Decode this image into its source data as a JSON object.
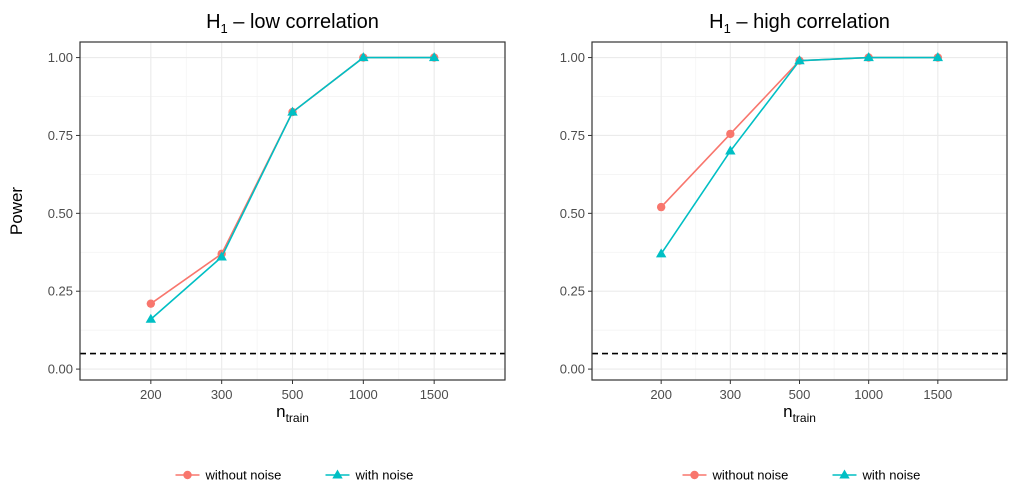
{
  "chart_data": [
    {
      "type": "line",
      "title_main": "H",
      "title_sub": "1",
      "title_rest": " – low correlation",
      "xlabel_main": "n",
      "xlabel_sub": "train",
      "ylabel": "Power",
      "categories": [
        "200",
        "300",
        "500",
        "1000",
        "1500"
      ],
      "yticks": [
        "0.00",
        "0.25",
        "0.50",
        "0.75",
        "1.00"
      ],
      "ylim": [
        -0.035,
        1.05
      ],
      "reference_line": 0.05,
      "series": [
        {
          "name": "without noise",
          "color": "#F8766D",
          "marker": "circle",
          "values": [
            0.21,
            0.37,
            0.825,
            1.0,
            1.0
          ]
        },
        {
          "name": "with noise",
          "color": "#00BFC4",
          "marker": "triangle",
          "values": [
            0.16,
            0.36,
            0.825,
            1.0,
            1.0
          ]
        }
      ],
      "legend_position": "bottom",
      "grid": true
    },
    {
      "type": "line",
      "title_main": "H",
      "title_sub": "1",
      "title_rest": " – high correlation",
      "xlabel_main": "n",
      "xlabel_sub": "train",
      "ylabel": "",
      "categories": [
        "200",
        "300",
        "500",
        "1000",
        "1500"
      ],
      "yticks": [
        "0.00",
        "0.25",
        "0.50",
        "0.75",
        "1.00"
      ],
      "ylim": [
        -0.035,
        1.05
      ],
      "reference_line": 0.05,
      "series": [
        {
          "name": "without noise",
          "color": "#F8766D",
          "marker": "circle",
          "values": [
            0.52,
            0.755,
            0.99,
            1.0,
            1.0
          ]
        },
        {
          "name": "with noise",
          "color": "#00BFC4",
          "marker": "triangle",
          "values": [
            0.37,
            0.7,
            0.99,
            1.0,
            1.0
          ]
        }
      ],
      "legend_position": "bottom",
      "grid": true
    }
  ]
}
